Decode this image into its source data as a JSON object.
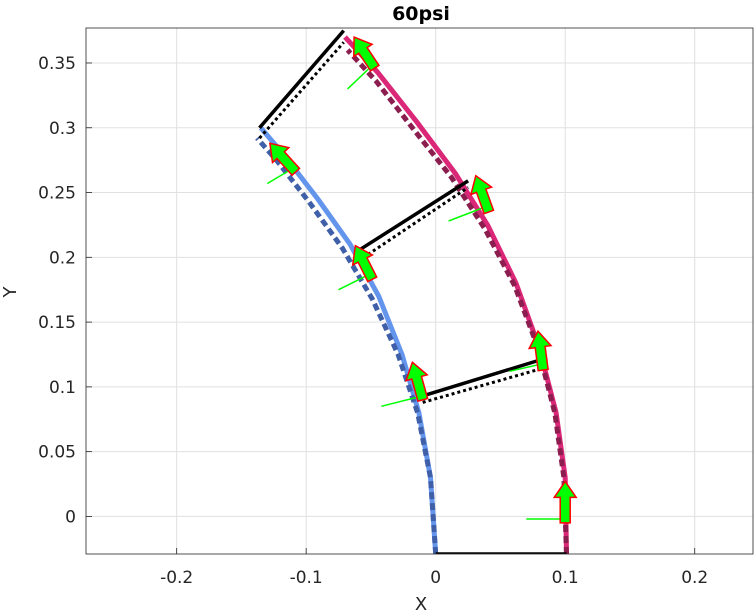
{
  "chart_data": {
    "type": "line",
    "title": "60psi",
    "xlabel": "X",
    "ylabel": "Y",
    "xlim": [
      -0.27,
      0.245
    ],
    "ylim": [
      -0.029,
      0.377
    ],
    "xticks": [
      -0.2,
      -0.1,
      0,
      0.1,
      0.2
    ],
    "xtick_labels": [
      "-0.2",
      "-0.1",
      "0",
      "0.1",
      "0.2"
    ],
    "yticks": [
      0,
      0.05,
      0.1,
      0.15,
      0.2,
      0.25,
      0.3,
      0.35
    ],
    "ytick_labels": [
      "0",
      "0.05",
      "0.1",
      "0.15",
      "0.2",
      "0.25",
      "0.3",
      "0.35"
    ],
    "grid": true,
    "colors": {
      "inner_arc": "#6495ED",
      "inner_arc_dashed": "#3F5FA8",
      "outer_arc": "#DB2777",
      "outer_arc_dashed": "#8B1E4F",
      "link": "#000000",
      "arrow_fill": "#00FF00",
      "arrow_edge": "#FF0000",
      "grid": "#E0E0E0",
      "axis": "#262626"
    },
    "series": [
      {
        "role": "inner-arc-solid",
        "style": "solid",
        "x": [
          0.0,
          -0.004,
          -0.013,
          -0.026,
          -0.044,
          -0.066,
          -0.091,
          -0.118,
          -0.135
        ],
        "y": [
          -0.029,
          0.03,
          0.08,
          0.125,
          0.17,
          0.21,
          0.245,
          0.28,
          0.3
        ]
      },
      {
        "role": "inner-arc-dashed",
        "style": "dashed",
        "x": [
          0.0,
          -0.004,
          -0.014,
          -0.029,
          -0.049,
          -0.072,
          -0.098,
          -0.123,
          -0.138
        ],
        "y": [
          -0.029,
          0.03,
          0.08,
          0.125,
          0.168,
          0.207,
          0.243,
          0.275,
          0.292
        ]
      },
      {
        "role": "outer-arc-solid",
        "style": "solid",
        "x": [
          0.101,
          0.1,
          0.093,
          0.08,
          0.062,
          0.04,
          0.015,
          -0.015,
          -0.045,
          -0.07
        ],
        "y": [
          -0.029,
          0.03,
          0.08,
          0.13,
          0.18,
          0.225,
          0.265,
          0.305,
          0.343,
          0.37
        ]
      },
      {
        "role": "outer-arc-dashed",
        "style": "dashed",
        "x": [
          0.101,
          0.099,
          0.092,
          0.079,
          0.061,
          0.038,
          0.012,
          -0.018,
          -0.046,
          -0.068
        ],
        "y": [
          -0.029,
          0.03,
          0.08,
          0.13,
          0.178,
          0.222,
          0.262,
          0.3,
          0.336,
          0.36
        ]
      }
    ],
    "links": [
      {
        "style": "solid",
        "x": [
          0.0,
          0.101
        ],
        "y": [
          -0.029,
          -0.029
        ]
      },
      {
        "style": "solid",
        "x": [
          -0.01,
          0.078
        ],
        "y": [
          0.093,
          0.12
        ]
      },
      {
        "style": "dotted",
        "x": [
          -0.01,
          0.078
        ],
        "y": [
          0.088,
          0.113
        ]
      },
      {
        "style": "solid",
        "x": [
          -0.06,
          0.025
        ],
        "y": [
          0.205,
          0.259
        ]
      },
      {
        "style": "dotted",
        "x": [
          -0.06,
          0.025
        ],
        "y": [
          0.197,
          0.254
        ]
      },
      {
        "style": "solid",
        "x": [
          -0.136,
          -0.071
        ],
        "y": [
          0.3,
          0.375
        ]
      },
      {
        "style": "dotted",
        "x": [
          -0.136,
          -0.071
        ],
        "y": [
          0.292,
          0.366
        ]
      }
    ],
    "arrows": [
      {
        "x": 0.1,
        "y": -0.005,
        "dx": 0.0,
        "dy": 0.032
      },
      {
        "x": 0.083,
        "y": 0.113,
        "dx": -0.004,
        "dy": 0.03
      },
      {
        "x": 0.041,
        "y": 0.235,
        "dx": -0.01,
        "dy": 0.028
      },
      {
        "x": -0.047,
        "y": 0.346,
        "dx": -0.016,
        "dy": 0.024
      },
      {
        "x": -0.01,
        "y": 0.09,
        "dx": -0.008,
        "dy": 0.029
      },
      {
        "x": -0.049,
        "y": 0.183,
        "dx": -0.013,
        "dy": 0.026
      },
      {
        "x": -0.108,
        "y": 0.266,
        "dx": -0.02,
        "dy": 0.022
      }
    ],
    "force_lines": [
      {
        "x": [
          0.1,
          0.07
        ],
        "y": [
          -0.002,
          -0.002
        ]
      },
      {
        "x": [
          0.083,
          0.057
        ],
        "y": [
          0.118,
          0.112
        ]
      },
      {
        "x": [
          0.041,
          0.01
        ],
        "y": [
          0.24,
          0.228
        ]
      },
      {
        "x": [
          -0.047,
          -0.068
        ],
        "y": [
          0.35,
          0.33
        ]
      },
      {
        "x": [
          -0.01,
          -0.042
        ],
        "y": [
          0.093,
          0.085
        ]
      },
      {
        "x": [
          -0.049,
          -0.075
        ],
        "y": [
          0.188,
          0.175
        ]
      },
      {
        "x": [
          -0.108,
          -0.13
        ],
        "y": [
          0.27,
          0.257
        ]
      }
    ]
  }
}
